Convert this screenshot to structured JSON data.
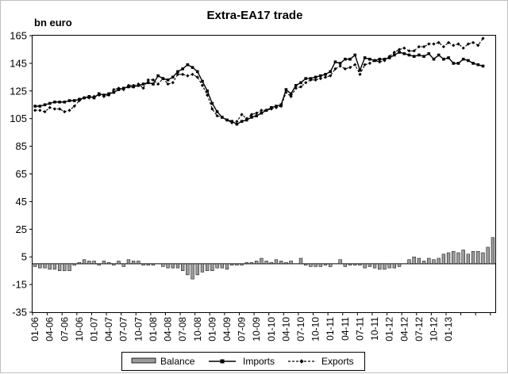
{
  "chart_data": {
    "type": "line",
    "title": "Extra-EA17 trade",
    "ylabel": "bn euro",
    "ylim": [
      -35,
      165
    ],
    "yticks": [
      165,
      145,
      125,
      105,
      85,
      65,
      45,
      25,
      5,
      -15,
      -35
    ],
    "grid": false,
    "legend_position": "bottom",
    "x_tick_labels": [
      "01-06",
      "04-06",
      "07-06",
      "10-06",
      "01-07",
      "04-07",
      "07-07",
      "10-07",
      "01-08",
      "04-08",
      "07-08",
      "10-08",
      "01-09",
      "04-09",
      "07-09",
      "10-09",
      "01-10",
      "04-10",
      "07-10",
      "10-10",
      "01-11",
      "04-11",
      "07-11",
      "10-11",
      "01-12",
      "04-12",
      "07-12",
      "10-12",
      "01-13"
    ],
    "x_start": "01-06",
    "series": [
      {
        "name": "Balance",
        "kind": "bar",
        "values": [
          -2,
          -3,
          -3,
          -4,
          -4,
          -5,
          -5,
          -5,
          -1,
          1,
          3,
          2,
          2,
          -1,
          2,
          1,
          -1,
          2,
          -2,
          3,
          2,
          2,
          -1,
          -1,
          -1,
          0,
          -2,
          -3,
          -3,
          -3,
          -5,
          -8,
          -11,
          -8,
          -6,
          -5,
          -5,
          -3,
          -3,
          -4,
          -1,
          -1,
          -1,
          1,
          1,
          2,
          4,
          2,
          1,
          3,
          2,
          1,
          2,
          0,
          4,
          -1,
          -2,
          -2,
          -2,
          -1,
          -2,
          0,
          3,
          -2,
          -1,
          -1,
          -1,
          -3,
          -2,
          -3,
          -4,
          -4,
          -3,
          -3,
          -2,
          0,
          3,
          5,
          4,
          2,
          4,
          3,
          4,
          7,
          8,
          9,
          8,
          10,
          7,
          9,
          9,
          8,
          12,
          19
        ]
      },
      {
        "name": "Imports",
        "kind": "line",
        "marker": "square",
        "values": [
          114,
          114,
          115,
          116,
          117,
          117,
          117,
          118,
          118,
          119,
          120,
          121,
          120,
          123,
          122,
          123,
          124,
          126,
          127,
          128,
          128,
          129,
          130,
          131,
          130,
          136,
          134,
          133,
          135,
          139,
          141,
          144,
          142,
          139,
          132,
          125,
          116,
          110,
          106,
          104,
          103,
          101,
          103,
          104,
          106,
          107,
          109,
          111,
          113,
          114,
          115,
          126,
          123,
          129,
          131,
          134,
          134,
          135,
          136,
          137,
          139,
          146,
          145,
          148,
          148,
          151,
          140,
          149,
          148,
          147,
          148,
          148,
          149,
          151,
          153,
          152,
          151,
          150,
          151,
          150,
          152,
          148,
          151,
          148,
          149,
          145,
          145,
          148,
          147,
          145,
          144,
          143
        ]
      },
      {
        "name": "Exports",
        "kind": "line",
        "marker": "diamond",
        "values": [
          111,
          111,
          110,
          113,
          112,
          112,
          110,
          111,
          114,
          118,
          120,
          120,
          121,
          122,
          121,
          122,
          126,
          127,
          126,
          129,
          129,
          130,
          127,
          133,
          133,
          130,
          134,
          130,
          131,
          137,
          137,
          136,
          137,
          135,
          129,
          122,
          112,
          107,
          106,
          104,
          102,
          103,
          108,
          105,
          108,
          109,
          111,
          111,
          112,
          113,
          114,
          124,
          121,
          127,
          128,
          131,
          133,
          133,
          134,
          135,
          136,
          141,
          143,
          141,
          142,
          144,
          137,
          144,
          145,
          147,
          146,
          147,
          150,
          153,
          155,
          156,
          154,
          154,
          157,
          157,
          159,
          159,
          160,
          157,
          160,
          158,
          159,
          156,
          159,
          160,
          158,
          163
        ]
      }
    ]
  }
}
